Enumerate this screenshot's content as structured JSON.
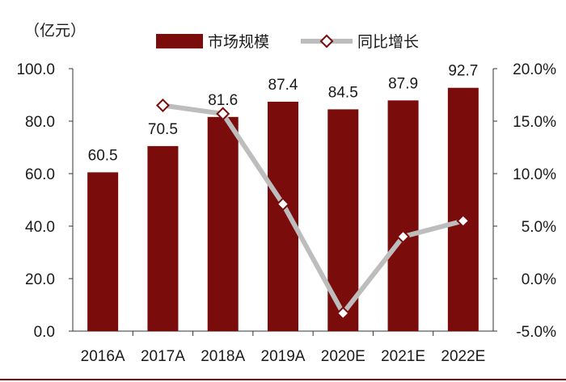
{
  "chart_data": {
    "type": "bar",
    "unit_label": "（亿元）",
    "categories": [
      "2016A",
      "2017A",
      "2018A",
      "2019A",
      "2020E",
      "2021E",
      "2022E"
    ],
    "series": [
      {
        "name": "市场规模",
        "type": "bar",
        "axis": "left",
        "values": [
          60.5,
          70.5,
          81.6,
          87.4,
          84.5,
          87.9,
          92.7
        ],
        "value_labels": [
          "60.5",
          "70.5",
          "81.6",
          "87.4",
          "84.5",
          "87.9",
          "92.7"
        ],
        "color": "#7b0c0c"
      },
      {
        "name": "同比增长",
        "type": "line",
        "axis": "right",
        "values": [
          null,
          16.5,
          15.7,
          7.1,
          -3.3,
          4.0,
          5.5
        ],
        "line_color": "#bdbdbd",
        "marker_color": "#7b0c0c"
      }
    ],
    "y_left": {
      "min": 0,
      "max": 100,
      "ticks": [
        "0.0",
        "20.0",
        "40.0",
        "60.0",
        "80.0",
        "100.0"
      ]
    },
    "y_right": {
      "min": -5,
      "max": 20,
      "ticks": [
        "-5.0%",
        "0.0%",
        "5.0%",
        "10.0%",
        "15.0%",
        "20.0%"
      ]
    },
    "legend_position": "top",
    "grid": false
  }
}
